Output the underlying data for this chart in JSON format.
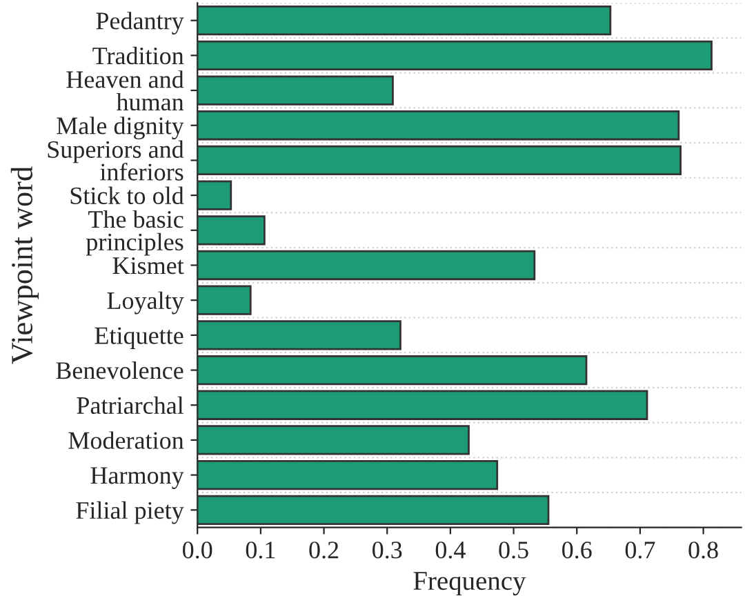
{
  "chart_data": {
    "type": "bar",
    "orientation": "horizontal",
    "xlabel": "Frequency",
    "ylabel": "Viewpoint word",
    "categories": [
      "Pedantry",
      "Tradition",
      "Heaven and\nhuman",
      "Male dignity",
      "Superiors and\ninferiors",
      "Stick to old",
      "The basic\nprinciples",
      "Kismet",
      "Loyalty",
      "Etiquette",
      "Benevolence",
      "Patriarchal",
      "Moderation",
      "Harmony",
      "Filial piety"
    ],
    "values": [
      0.653,
      0.813,
      0.309,
      0.761,
      0.764,
      0.053,
      0.106,
      0.533,
      0.084,
      0.321,
      0.615,
      0.711,
      0.429,
      0.474,
      0.555
    ],
    "color": "#1d9a76",
    "xlim": [
      0,
      0.86
    ],
    "xticks": [
      "0.0",
      0.1,
      0.2,
      0.3,
      0.4,
      0.5,
      0.6,
      0.7,
      0.8
    ],
    "grid": "y"
  }
}
